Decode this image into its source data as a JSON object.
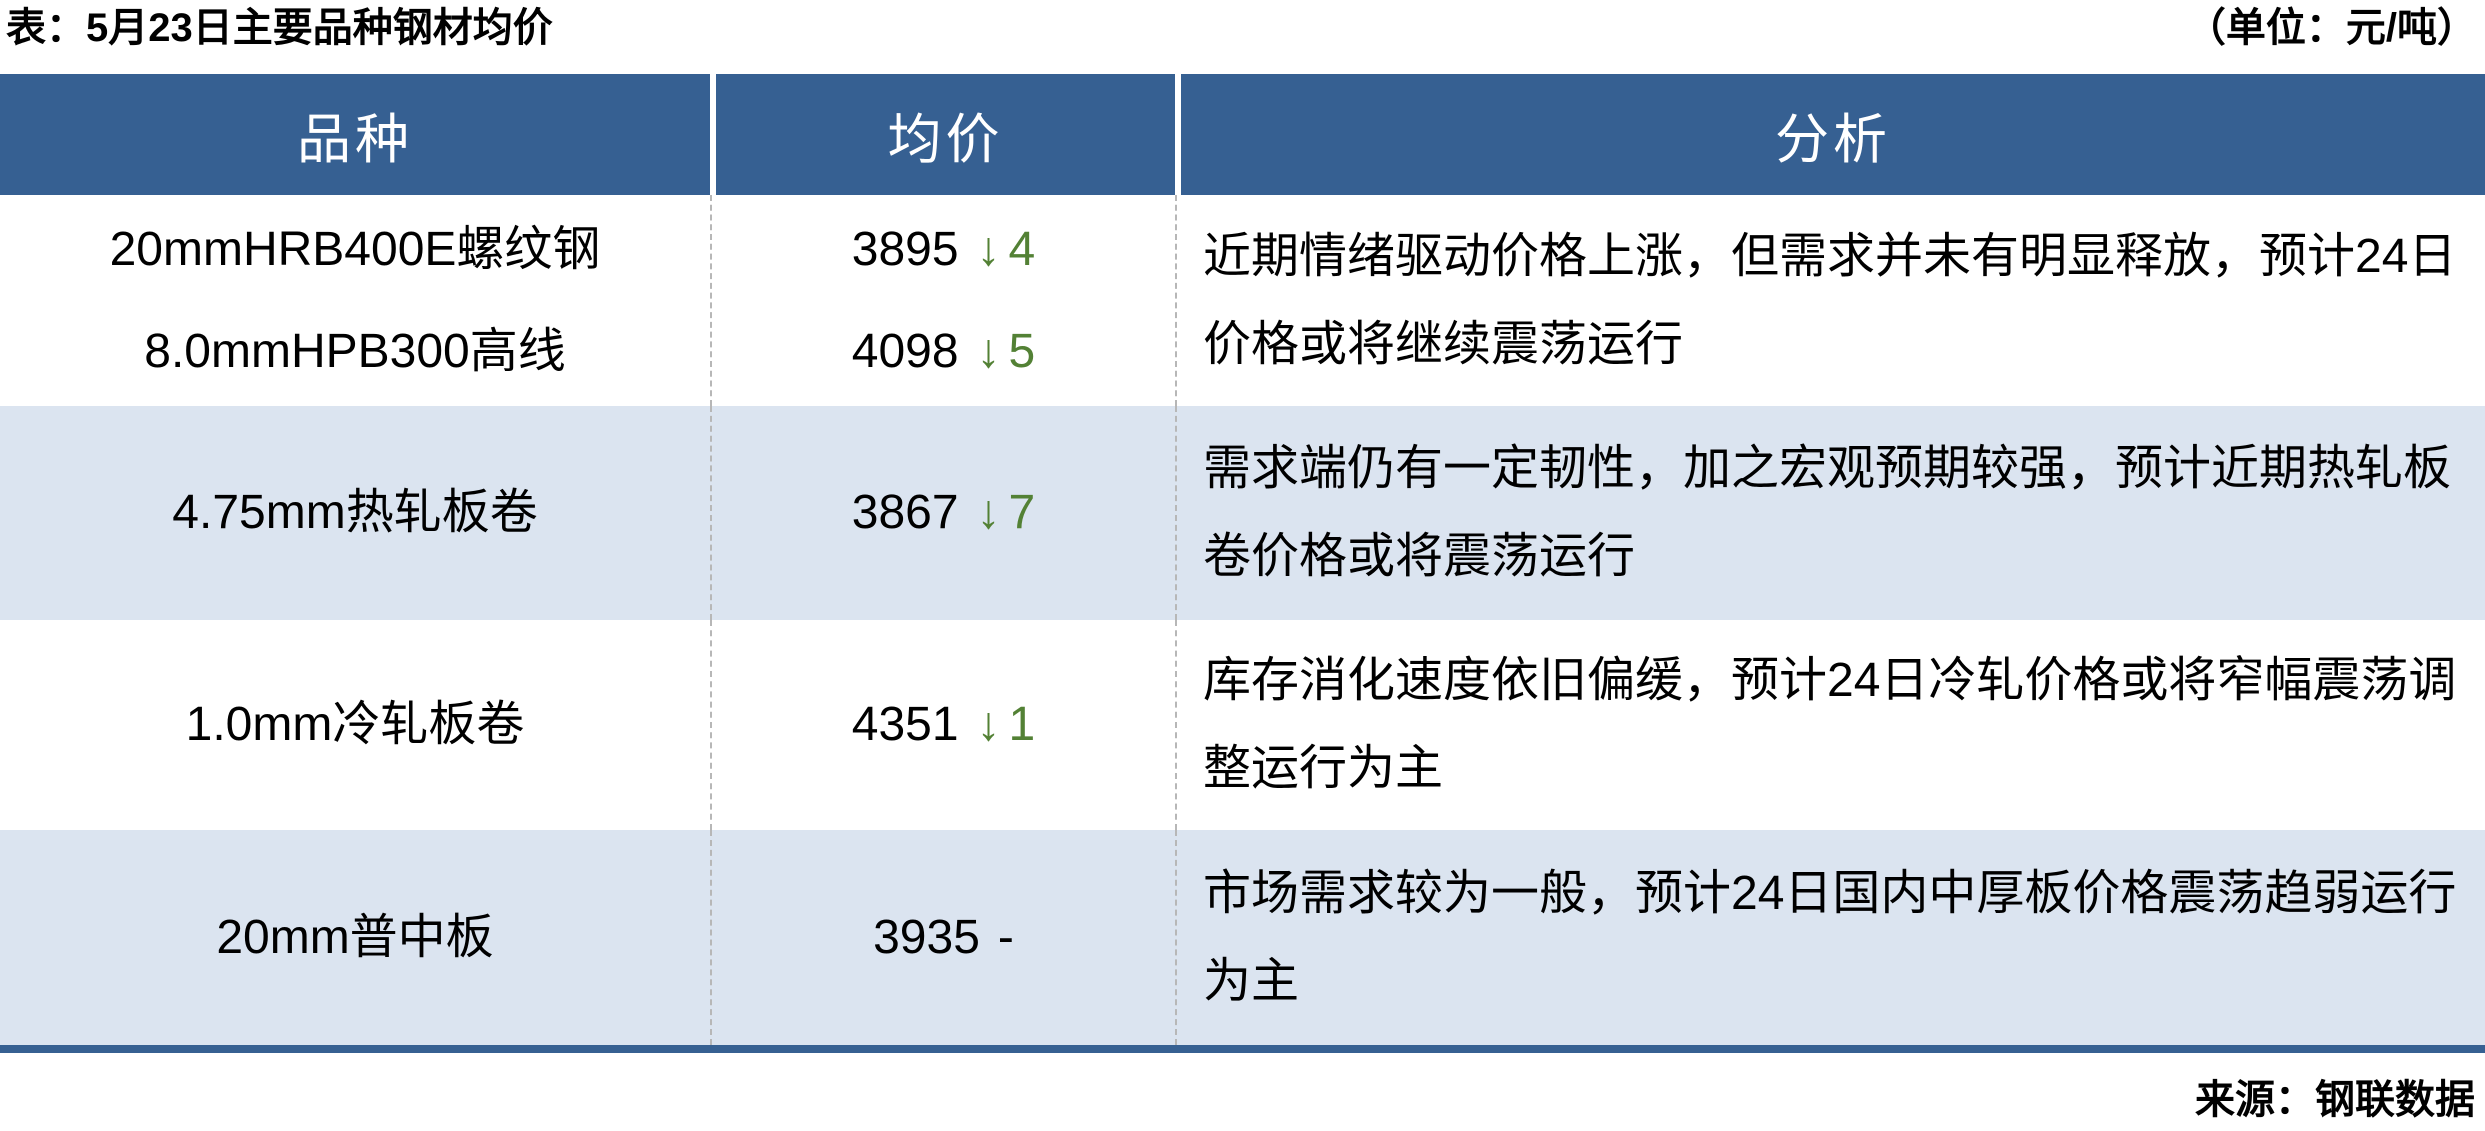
{
  "page": {
    "title": "表：5月23日主要品种钢材均价",
    "unit_label": "（单位：元/吨）",
    "source_label": "来源：钢联数据"
  },
  "colors": {
    "header_bg": "#366092",
    "alt_row_bg": "#dbe4f0",
    "down_green": "#538135",
    "bottom_rule": "#366092",
    "divider_gray": "#b7b7b7"
  },
  "table": {
    "headers": {
      "variety": "品种",
      "avg_price": "均价",
      "analysis": "分析"
    },
    "rows": [
      {
        "products": [
          "20mmHRB400E螺纹钢",
          "8.0mmHPB300高线"
        ],
        "prices": [
          {
            "value": "3895",
            "arrow": "↓",
            "delta": "4",
            "direction": "down"
          },
          {
            "value": "4098",
            "arrow": "↓",
            "delta": "5",
            "direction": "down"
          }
        ],
        "analysis": "近期情绪驱动价格上涨，但需求并未有明显释放，预计24日价格或将继续震荡运行"
      },
      {
        "products": [
          "4.75mm热轧板卷"
        ],
        "prices": [
          {
            "value": "3867",
            "arrow": "↓",
            "delta": "7",
            "direction": "down"
          }
        ],
        "analysis": "需求端仍有一定韧性，加之宏观预期较强，预计近期热轧板卷价格或将震荡运行"
      },
      {
        "products": [
          "1.0mm冷轧板卷"
        ],
        "prices": [
          {
            "value": "4351",
            "arrow": "↓",
            "delta": "1",
            "direction": "down"
          }
        ],
        "analysis": "库存消化速度依旧偏缓，预计24日冷轧价格或将窄幅震荡调整运行为主"
      },
      {
        "products": [
          "20mm普中板"
        ],
        "prices": [
          {
            "value": "3935",
            "arrow": "",
            "delta": "-",
            "direction": "flat"
          }
        ],
        "analysis": "市场需求较为一般，预计24日国内中厚板价格震荡趋弱运行为主"
      }
    ]
  }
}
